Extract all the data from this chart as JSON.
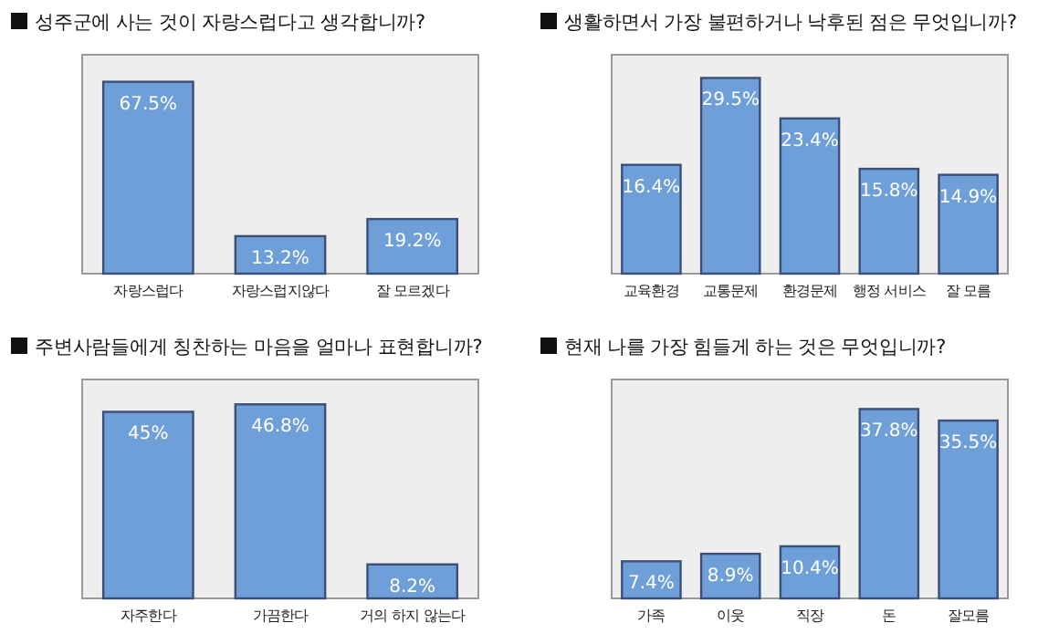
{
  "chart_data": [
    {
      "type": "bar",
      "title": "성주군에 사는 것이 자랑스럽다고 생각합니까?",
      "categories": [
        "자랑스럽다",
        "자랑스럽지않다",
        "잘 모르겠다"
      ],
      "values": [
        67.5,
        13.2,
        19.2
      ],
      "value_labels": [
        "67.5%",
        "13.2%",
        "19.2%"
      ],
      "color": "#6f9fd8",
      "ylim": [
        0,
        77
      ]
    },
    {
      "type": "bar",
      "title": "생활하면서 가장 불편하거나 낙후된 점은 무엇입니까?",
      "categories": [
        "교육환경",
        "교통문제",
        "환경문제",
        "행정 서비스",
        "잘 모름"
      ],
      "values": [
        16.4,
        29.5,
        23.4,
        15.8,
        14.9
      ],
      "value_labels": [
        "16.4%",
        "29.5%",
        "23.4%",
        "15.8%",
        "14.9%"
      ],
      "color": "#6f9fd8",
      "ylim": [
        0,
        33
      ]
    },
    {
      "type": "bar",
      "title": "주변사람들에게 칭찬하는 마음을 얼마나 표현합니까?",
      "categories": [
        "자주한다",
        "가끔한다",
        "거의 하지 않는다"
      ],
      "values": [
        45,
        46.8,
        8.2
      ],
      "value_labels": [
        "45%",
        "46.8%",
        "8.2%"
      ],
      "color": "#6f9fd8",
      "ylim": [
        0,
        52.8
      ]
    },
    {
      "type": "bar",
      "title": "현재 나를 가장 힘들게 하는 것은 무엇입니까?",
      "categories": [
        "가족",
        "이웃",
        "직장",
        "돈",
        "잘모름"
      ],
      "values": [
        7.4,
        8.9,
        10.4,
        37.8,
        35.5
      ],
      "value_labels": [
        "7.4%",
        "8.9%",
        "10.4%",
        "37.8%",
        "35.5%"
      ],
      "color": "#6f9fd8",
      "ylim": [
        0,
        43.7
      ]
    }
  ]
}
